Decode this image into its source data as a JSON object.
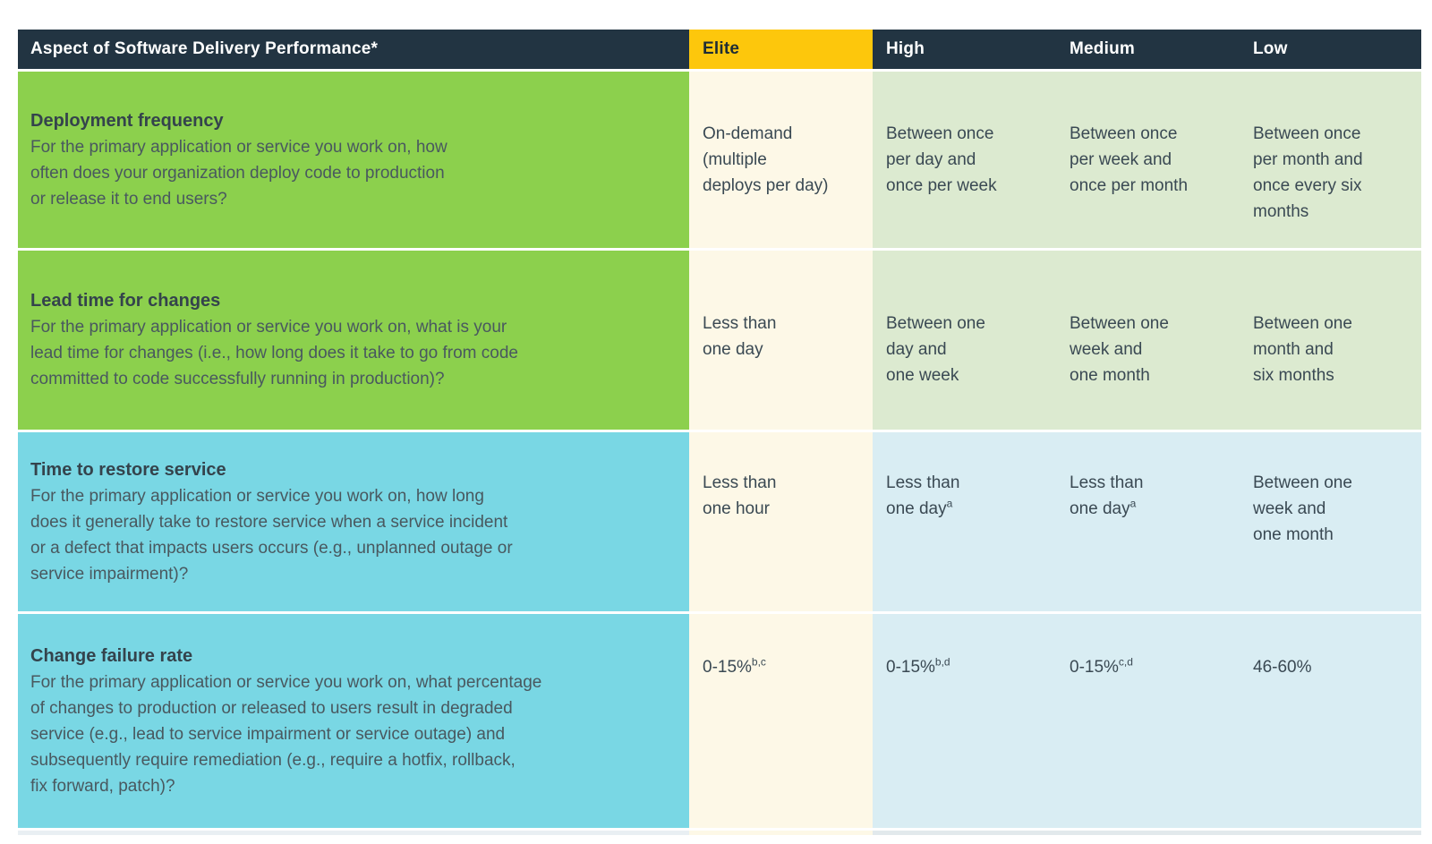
{
  "colors": {
    "navy": "#223442",
    "gold": "#fdc70c",
    "green": "#8cd04d",
    "cyan": "#79d7e4",
    "cream": "#fdf8e7",
    "lgreen": "#dcead0",
    "lblue": "#d9edf3"
  },
  "header": {
    "aspect": "Aspect of Software Delivery Performance*",
    "levels": [
      "Elite",
      "High",
      "Medium",
      "Low"
    ]
  },
  "rows": [
    {
      "theme": "green",
      "title": "Deployment frequency",
      "description": "For the primary application or service you work on, how\noften does your organization deploy code to production\nor release it to end users?",
      "cells": [
        {
          "text": "On-demand\n(multiple\ndeploys per day)",
          "sup": ""
        },
        {
          "text": "Between once\nper day and\nonce per week",
          "sup": ""
        },
        {
          "text": "Between once\nper week and\nonce per month",
          "sup": ""
        },
        {
          "text": "Between once\nper month and\nonce every six\nmonths",
          "sup": ""
        }
      ]
    },
    {
      "theme": "green",
      "title": "Lead time for changes",
      "description": "For the primary application or service you work on, what is your\nlead time for changes (i.e., how long does it take to go from code\ncommitted to code successfully running in production)?",
      "cells": [
        {
          "text": "Less than\none day",
          "sup": ""
        },
        {
          "text": "Between one\nday and\none week",
          "sup": ""
        },
        {
          "text": "Between one\nweek and\none month",
          "sup": ""
        },
        {
          "text": "Between one\nmonth and\nsix months",
          "sup": ""
        }
      ]
    },
    {
      "theme": "cyan",
      "title": "Time to restore service",
      "description": "For the primary application or service you work on, how long\ndoes it generally take to restore service when a service incident\nor a defect that impacts users occurs (e.g., unplanned outage or\nservice impairment)?",
      "cells": [
        {
          "text": "Less than\none hour",
          "sup": ""
        },
        {
          "text": "Less than\none day",
          "sup": "a"
        },
        {
          "text": "Less than\none day",
          "sup": "a"
        },
        {
          "text": "Between one\nweek and\none month",
          "sup": ""
        }
      ]
    },
    {
      "theme": "cyan",
      "title": "Change failure rate",
      "description": "For the primary application or service you work on, what percentage\nof changes to production or released to users result in degraded\nservice (e.g., lead to service impairment or service outage) and\nsubsequently require remediation (e.g., require a hotfix, rollback,\nfix forward, patch)?",
      "cells": [
        {
          "text": "0-15%",
          "sup": "b,c"
        },
        {
          "text": "0-15%",
          "sup": "b,d"
        },
        {
          "text": "0-15%",
          "sup": "c,d"
        },
        {
          "text": "46-60%",
          "sup": ""
        }
      ]
    }
  ]
}
